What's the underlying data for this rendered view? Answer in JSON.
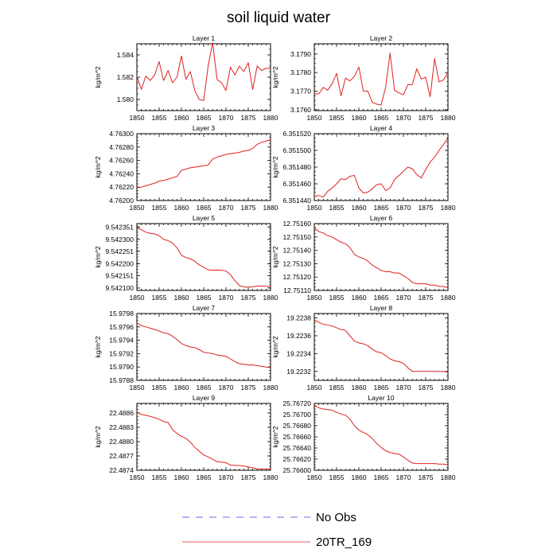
{
  "figure": {
    "title": "soil liquid water",
    "legend": [
      {
        "label": "No Obs",
        "color": "#3b3bd6",
        "dash": true
      },
      {
        "label": "20TR_169",
        "color": "#e02020",
        "dash": false
      }
    ],
    "line_color": "#e02020"
  },
  "chart_data": [
    {
      "type": "line",
      "title": "Layer 1",
      "ylabel": "kg/m^2",
      "xlim": [
        1850,
        1880
      ],
      "xticks": [
        1850,
        1855,
        1860,
        1865,
        1870,
        1875,
        1880
      ],
      "ylim": [
        1.579,
        1.585
      ],
      "yticks": [
        1.58,
        1.582,
        1.584
      ],
      "ytick_labels": [
        "1.580",
        "1.582",
        "1.584"
      ],
      "series": [
        {
          "x": [
            1850,
            1851,
            1852,
            1853,
            1854,
            1855,
            1856,
            1857,
            1858,
            1859,
            1860,
            1861,
            1862,
            1863,
            1864,
            1865,
            1866,
            1867,
            1868,
            1869,
            1870,
            1871,
            1872,
            1873,
            1874,
            1875,
            1876,
            1877,
            1878,
            1879,
            1880
          ],
          "y": [
            1.5821,
            1.5809,
            1.5821,
            1.5817,
            1.5822,
            1.5834,
            1.5817,
            1.5826,
            1.5815,
            1.582,
            1.5839,
            1.5818,
            1.5825,
            1.5808,
            1.58,
            1.5799,
            1.583,
            1.5851,
            1.5818,
            1.5815,
            1.5808,
            1.5829,
            1.5822,
            1.583,
            1.5825,
            1.5833,
            1.5809,
            1.583,
            1.5826,
            1.5828,
            1.5828
          ]
        }
      ]
    },
    {
      "type": "line",
      "title": "Layer 2",
      "ylabel": "kg/m^2",
      "xlim": [
        1850,
        1880
      ],
      "xticks": [
        1850,
        1855,
        1860,
        1865,
        1870,
        1875,
        1880
      ],
      "ylim": [
        3.17595,
        3.17955
      ],
      "yticks": [
        3.176,
        3.177,
        3.178,
        3.179
      ],
      "ytick_labels": [
        "3.1760",
        "3.1770",
        "3.1780",
        "3.1790"
      ],
      "series": [
        {
          "x": [
            1850,
            1851,
            1852,
            1853,
            1854,
            1855,
            1856,
            1857,
            1858,
            1859,
            1860,
            1861,
            1862,
            1863,
            1864,
            1865,
            1866,
            1867,
            1868,
            1869,
            1870,
            1871,
            1872,
            1873,
            1874,
            1875,
            1876,
            1877,
            1878,
            1879,
            1880
          ],
          "y": [
            3.17685,
            3.17685,
            3.1772,
            3.17705,
            3.1774,
            3.17795,
            3.17675,
            3.1777,
            3.17755,
            3.1778,
            3.1783,
            3.177,
            3.177,
            3.1764,
            3.1763,
            3.17625,
            3.1772,
            3.17905,
            3.17705,
            3.1769,
            3.1768,
            3.17735,
            3.17735,
            3.1782,
            3.17765,
            3.17775,
            3.1767,
            3.17875,
            3.1775,
            3.1776,
            3.178
          ]
        }
      ]
    },
    {
      "type": "line",
      "title": "Layer 3",
      "ylabel": "kg/m^2",
      "xlim": [
        1850,
        1880
      ],
      "xticks": [
        1850,
        1855,
        1860,
        1865,
        1870,
        1875,
        1880
      ],
      "ylim": [
        4.762,
        4.763
      ],
      "yticks": [
        4.762,
        4.7622,
        4.7624,
        4.7626,
        4.7628,
        4.763
      ],
      "ytick_labels": [
        "4.76200",
        "4.76220",
        "4.76240",
        "4.76260",
        "4.76280",
        "4.76300"
      ],
      "series": [
        {
          "x": [
            1850,
            1851,
            1852,
            1853,
            1854,
            1855,
            1856,
            1857,
            1858,
            1859,
            1860,
            1861,
            1862,
            1863,
            1864,
            1865,
            1866,
            1867,
            1868,
            1869,
            1870,
            1871,
            1872,
            1873,
            1874,
            1875,
            1876,
            1877,
            1878,
            1879,
            1880
          ],
          "y": [
            4.76219,
            4.7622,
            4.76222,
            4.76224,
            4.76226,
            4.76229,
            4.7623,
            4.76232,
            4.76234,
            4.76236,
            4.76245,
            4.76247,
            4.76249,
            4.7625,
            4.76251,
            4.76252,
            4.76253,
            4.76262,
            4.76265,
            4.76267,
            4.76269,
            4.7627,
            4.76271,
            4.76272,
            4.76274,
            4.76275,
            4.76278,
            4.76284,
            4.76287,
            4.76289,
            4.76291
          ]
        }
      ]
    },
    {
      "type": "line",
      "title": "Layer 4",
      "ylabel": "kg/m^2",
      "xlim": [
        1850,
        1880
      ],
      "xticks": [
        1850,
        1855,
        1860,
        1865,
        1870,
        1875,
        1880
      ],
      "ylim": [
        6.35144,
        6.35152
      ],
      "yticks": [
        6.35144,
        6.35146,
        6.35148,
        6.3515,
        6.35152
      ],
      "ytick_labels": [
        "6.351440",
        "6.351460",
        "6.351480",
        "6.351500",
        "6.351520"
      ],
      "series": [
        {
          "x": [
            1850,
            1851,
            1852,
            1853,
            1854,
            1855,
            1856,
            1857,
            1858,
            1859,
            1860,
            1861,
            1862,
            1863,
            1864,
            1865,
            1866,
            1867,
            1868,
            1869,
            1870,
            1871,
            1872,
            1873,
            1874,
            1875,
            1876,
            1877,
            1878,
            1879,
            1880
          ],
          "y": [
            6.351445,
            6.351446,
            6.351444,
            6.351451,
            6.351455,
            6.35146,
            6.351466,
            6.351465,
            6.351469,
            6.35147,
            6.351455,
            6.351449,
            6.35145,
            6.351454,
            6.351459,
            6.35146,
            6.351452,
            6.351455,
            6.351465,
            6.35147,
            6.351475,
            6.35148,
            6.351478,
            6.351471,
            6.351467,
            6.351477,
            6.351486,
            6.351492,
            6.3515,
            6.351507,
            6.351515
          ]
        }
      ]
    },
    {
      "type": "line",
      "title": "Layer 5",
      "ylabel": "kg/m^2",
      "xlim": [
        1850,
        1880
      ],
      "xticks": [
        1850,
        1855,
        1860,
        1865,
        1870,
        1875,
        1880
      ],
      "ylim": [
        9.54209,
        9.542365
      ],
      "yticks": [
        9.5421,
        9.542151,
        9.5422,
        9.542251,
        9.5423,
        9.542351
      ],
      "ytick_labels": [
        "9.542100",
        "9.542151",
        "9.542200",
        "9.542251",
        "9.542300",
        "9.542351"
      ],
      "series": [
        {
          "x": [
            1850,
            1851,
            1852,
            1853,
            1854,
            1855,
            1856,
            1857,
            1858,
            1859,
            1860,
            1861,
            1862,
            1863,
            1864,
            1865,
            1866,
            1867,
            1868,
            1869,
            1870,
            1871,
            1872,
            1873,
            1874,
            1875,
            1876,
            1877,
            1878,
            1879,
            1880
          ],
          "y": [
            9.54235,
            9.54234,
            9.54233,
            9.542325,
            9.542323,
            9.542315,
            9.5423,
            9.542295,
            9.542285,
            9.542265,
            9.542235,
            9.542225,
            9.54222,
            9.54221,
            9.542195,
            9.542185,
            9.542175,
            9.542173,
            9.542174,
            9.542173,
            9.54217,
            9.542155,
            9.54213,
            9.54211,
            9.542105,
            9.542103,
            9.542105,
            9.542108,
            9.542108,
            9.542107,
            9.542105
          ]
        }
      ]
    },
    {
      "type": "line",
      "title": "Layer 6",
      "ylabel": "kg/m^2",
      "xlim": [
        1850,
        1880
      ],
      "xticks": [
        1850,
        1855,
        1860,
        1865,
        1870,
        1875,
        1880
      ],
      "ylim": [
        12.7511,
        12.7516
      ],
      "yticks": [
        12.7511,
        12.7512,
        12.7513,
        12.7514,
        12.7515,
        12.7516
      ],
      "ytick_labels": [
        "12.75110",
        "12.75120",
        "12.75130",
        "12.75140",
        "12.75150",
        "12.75160"
      ],
      "series": [
        {
          "x": [
            1850,
            1851,
            1852,
            1853,
            1854,
            1855,
            1856,
            1857,
            1858,
            1859,
            1860,
            1861,
            1862,
            1863,
            1864,
            1865,
            1866,
            1867,
            1868,
            1869,
            1870,
            1871,
            1872,
            1873,
            1874,
            1875,
            1876,
            1877,
            1878,
            1879,
            1880
          ],
          "y": [
            12.75157,
            12.75154,
            12.75153,
            12.75151,
            12.7515,
            12.75148,
            12.75146,
            12.75145,
            12.75142,
            12.75137,
            12.75135,
            12.75134,
            12.75132,
            12.75129,
            12.75127,
            12.75125,
            12.75124,
            12.75124,
            12.75123,
            12.75123,
            12.75121,
            12.75119,
            12.75116,
            12.75115,
            12.75115,
            12.75115,
            12.75114,
            12.75114,
            12.75113,
            12.75113,
            12.75112
          ]
        }
      ]
    },
    {
      "type": "line",
      "title": "Layer 7",
      "ylabel": "kg/m^2",
      "xlim": [
        1850,
        1880
      ],
      "xticks": [
        1850,
        1855,
        1860,
        1865,
        1870,
        1875,
        1880
      ],
      "ylim": [
        15.9788,
        15.9798
      ],
      "yticks": [
        15.9788,
        15.979,
        15.9792,
        15.9794,
        15.9796,
        15.9798
      ],
      "ytick_labels": [
        "15.9788",
        "15.9790",
        "15.9792",
        "15.9794",
        "15.9796",
        "15.9798"
      ],
      "series": [
        {
          "x": [
            1850,
            1851,
            1852,
            1853,
            1854,
            1855,
            1856,
            1857,
            1858,
            1859,
            1860,
            1861,
            1862,
            1863,
            1864,
            1865,
            1866,
            1867,
            1868,
            1869,
            1870,
            1871,
            1872,
            1873,
            1874,
            1875,
            1876,
            1877,
            1878,
            1879,
            1880
          ],
          "y": [
            15.97966,
            15.97962,
            15.9796,
            15.97958,
            15.97956,
            15.97954,
            15.97951,
            15.9795,
            15.97946,
            15.97941,
            15.97935,
            15.97932,
            15.9793,
            15.97929,
            15.97926,
            15.97922,
            15.97921,
            15.9792,
            15.97918,
            15.97917,
            15.97916,
            15.97912,
            15.97908,
            15.97905,
            15.97904,
            15.97903,
            15.97903,
            15.97902,
            15.97901,
            15.979,
            15.97899
          ]
        }
      ]
    },
    {
      "type": "line",
      "title": "Layer 8",
      "ylabel": "kg/m^2",
      "xlim": [
        1850,
        1880
      ],
      "xticks": [
        1850,
        1855,
        1860,
        1865,
        1870,
        1875,
        1880
      ],
      "ylim": [
        19.2231,
        19.22385
      ],
      "yticks": [
        19.2232,
        19.2234,
        19.2236,
        19.2238
      ],
      "ytick_labels": [
        "19.2232",
        "19.2234",
        "19.2236",
        "19.2238"
      ],
      "series": [
        {
          "x": [
            1850,
            1851,
            1852,
            1853,
            1854,
            1855,
            1856,
            1857,
            1858,
            1859,
            1860,
            1861,
            1862,
            1863,
            1864,
            1865,
            1866,
            1867,
            1868,
            1869,
            1870,
            1871,
            1872,
            1873,
            1874,
            1875,
            1876,
            1877,
            1878,
            1879,
            1880
          ],
          "y": [
            19.22378,
            19.22375,
            19.22373,
            19.22372,
            19.22371,
            19.22369,
            19.22367,
            19.22366,
            19.2236,
            19.22354,
            19.22352,
            19.22351,
            19.22349,
            19.22345,
            19.22342,
            19.22341,
            19.22338,
            19.22334,
            19.22332,
            19.22331,
            19.22329,
            19.22324,
            19.2232,
            19.2232,
            19.2232,
            19.2232,
            19.2232,
            19.2232,
            19.2232,
            19.2232,
            19.22319
          ]
        }
      ]
    },
    {
      "type": "line",
      "title": "Layer 9",
      "ylabel": "kg/m^2",
      "xlim": [
        1850,
        1880
      ],
      "xticks": [
        1850,
        1855,
        1860,
        1865,
        1870,
        1875,
        1880
      ],
      "ylim": [
        22.4874,
        22.4888
      ],
      "yticks": [
        22.4874,
        22.4877,
        22.488,
        22.4883,
        22.4886
      ],
      "ytick_labels": [
        "22.4874",
        "22.4877",
        "22.4880",
        "22.4883",
        "22.4886"
      ],
      "series": [
        {
          "x": [
            1850,
            1851,
            1852,
            1853,
            1854,
            1855,
            1856,
            1857,
            1858,
            1859,
            1860,
            1861,
            1862,
            1863,
            1864,
            1865,
            1866,
            1867,
            1868,
            1869,
            1870,
            1871,
            1872,
            1873,
            1874,
            1875,
            1876,
            1877,
            1878,
            1879,
            1880
          ],
          "y": [
            22.48862,
            22.48857,
            22.48855,
            22.48853,
            22.4885,
            22.48847,
            22.48842,
            22.4884,
            22.48825,
            22.48817,
            22.48811,
            22.48807,
            22.48799,
            22.48788,
            22.4878,
            22.48772,
            22.48768,
            22.48763,
            22.48758,
            22.48757,
            22.48756,
            22.48751,
            22.4875,
            22.4875,
            22.48749,
            22.48747,
            22.48745,
            22.48743,
            22.48743,
            22.48743,
            22.48742
          ]
        }
      ]
    },
    {
      "type": "line",
      "title": "Layer 10",
      "ylabel": "kg/m^2",
      "xlim": [
        1850,
        1880
      ],
      "xticks": [
        1850,
        1855,
        1860,
        1865,
        1870,
        1875,
        1880
      ],
      "ylim": [
        25.766,
        25.7672
      ],
      "yticks": [
        25.766,
        25.7662,
        25.7664,
        25.7666,
        25.7668,
        25.767,
        25.7672
      ],
      "ytick_labels": [
        "25.76600",
        "25.76620",
        "25.76640",
        "25.76660",
        "25.76680",
        "25.76700",
        "25.76720"
      ],
      "series": [
        {
          "x": [
            1850,
            1851,
            1852,
            1853,
            1854,
            1855,
            1856,
            1857,
            1858,
            1859,
            1860,
            1861,
            1862,
            1863,
            1864,
            1865,
            1866,
            1867,
            1868,
            1869,
            1870,
            1871,
            1872,
            1873,
            1874,
            1875,
            1876,
            1877,
            1878,
            1879,
            1880
          ],
          "y": [
            25.76717,
            25.76712,
            25.7671,
            25.76709,
            25.76708,
            25.76704,
            25.76701,
            25.76699,
            25.76692,
            25.7668,
            25.76672,
            25.76668,
            25.76664,
            25.76657,
            25.76648,
            25.76641,
            25.76635,
            25.76632,
            25.7663,
            25.76629,
            25.76624,
            25.76618,
            25.76613,
            25.76612,
            25.76612,
            25.76612,
            25.76612,
            25.76612,
            25.76611,
            25.76611,
            25.7661
          ]
        }
      ]
    }
  ]
}
